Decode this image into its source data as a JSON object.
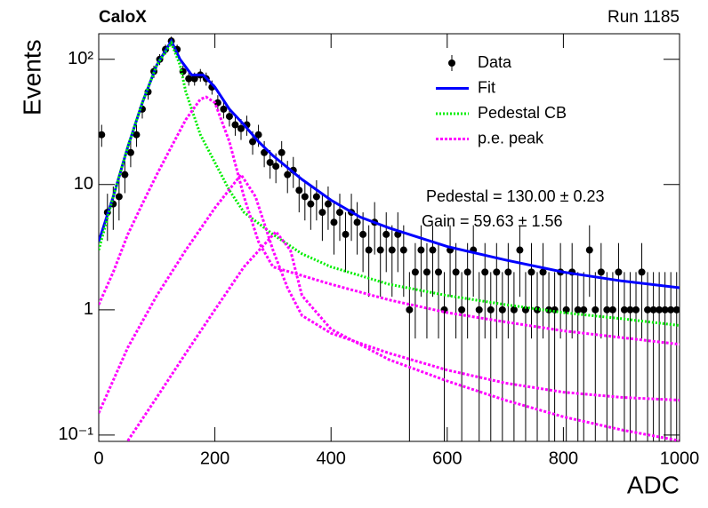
{
  "chart_data": {
    "type": "line",
    "title": "CaloX",
    "subtitle": "Run 1185",
    "x_label": "ADC",
    "y_label": "Events",
    "xlim": [
      0,
      1000
    ],
    "xticks": [
      0,
      200,
      400,
      600,
      800,
      1000
    ],
    "ylim": [
      0.089,
      160
    ],
    "log_y": true,
    "yticks": [
      {
        "value": 0.1,
        "label": "10⁻¹"
      },
      1,
      10,
      {
        "value": 100,
        "label": "10²"
      }
    ],
    "legend": "upper right",
    "annotations": [
      "Pedestal = 130.00 ± 0.23",
      "Gain = 59.63 ± 1.56"
    ],
    "series": [
      {
        "name": "Data",
        "color": "#000000",
        "x": [
          5,
          15,
          25,
          35,
          45,
          55,
          65,
          75,
          85,
          95,
          105,
          115,
          125,
          135,
          145,
          155,
          165,
          175,
          185,
          195,
          205,
          215,
          225,
          235,
          245,
          255,
          265,
          275,
          285,
          295,
          305,
          315,
          325,
          335,
          345,
          355,
          365,
          375,
          385,
          395,
          405,
          415,
          425,
          435,
          445,
          455,
          465,
          475,
          485,
          495,
          505,
          515,
          525,
          535,
          545,
          555,
          565,
          575,
          585,
          595,
          605,
          615,
          625,
          635,
          645,
          655,
          665,
          675,
          685,
          695,
          705,
          715,
          725,
          735,
          745,
          755,
          765,
          775,
          785,
          795,
          805,
          815,
          825,
          835,
          845,
          855,
          865,
          875,
          885,
          895,
          905,
          915,
          925,
          935,
          945,
          955,
          965,
          975,
          985,
          995
        ],
        "values": [
          25,
          6,
          7,
          8,
          12,
          18,
          25,
          40,
          55,
          80,
          100,
          120,
          140,
          120,
          80,
          70,
          70,
          75,
          70,
          60,
          45,
          40,
          35,
          30,
          28,
          30,
          22,
          25,
          18,
          15,
          14,
          18,
          12,
          13,
          9,
          8,
          7,
          8,
          6,
          7,
          5,
          6,
          4,
          6,
          5,
          4,
          3,
          5,
          3,
          4,
          3,
          4,
          3,
          1,
          2,
          3,
          2,
          3,
          2,
          1,
          3,
          2,
          1,
          2,
          3,
          1,
          2,
          1,
          2,
          1,
          2,
          1,
          3,
          1,
          2,
          1,
          2,
          1,
          1,
          2,
          1,
          2,
          1,
          1,
          3,
          1,
          2,
          1,
          1,
          2,
          1,
          1,
          1,
          2,
          1,
          1,
          1,
          1,
          1,
          1
        ],
        "errors": [
          5,
          2.45,
          2.65,
          2.83,
          3.46,
          4.24,
          5,
          6.32,
          7.42,
          8.94,
          10,
          10.95,
          11.83,
          10.95,
          8.94,
          8.37,
          8.37,
          8.66,
          8.37,
          7.75,
          6.71,
          6.32,
          5.92,
          5.48,
          5.29,
          5.48,
          4.69,
          5,
          4.24,
          3.87,
          3.74,
          4.24,
          3.46,
          3.61,
          3,
          2.83,
          2.65,
          2.83,
          2.45,
          2.65,
          2.24,
          2.45,
          2,
          2.45,
          2.24,
          2,
          1.73,
          2.24,
          1.73,
          2,
          1.73,
          2,
          1.73,
          1,
          1.41,
          1.73,
          1.41,
          1.73,
          1.41,
          1,
          1.73,
          1.41,
          1,
          1.41,
          1.73,
          1,
          1.41,
          1,
          1.41,
          1,
          1.41,
          1,
          1.73,
          1,
          1.41,
          1,
          1.41,
          1,
          1,
          1.41,
          1,
          1.41,
          1,
          1,
          1.73,
          1,
          1.41,
          1,
          1,
          1.41,
          1,
          1,
          1,
          1.41,
          1,
          1,
          1,
          1,
          1,
          1
        ]
      },
      {
        "name": "Fit",
        "color": "#0000ff",
        "x": [
          0,
          25,
          50,
          75,
          100,
          125,
          140,
          160,
          180,
          200,
          225,
          250,
          275,
          300,
          350,
          400,
          450,
          500,
          600,
          700,
          800,
          900,
          1000
        ],
        "values": [
          3.5,
          8,
          20,
          45,
          90,
          140,
          100,
          75,
          75,
          60,
          40,
          30,
          22,
          17,
          11,
          7.5,
          5.5,
          4.5,
          3.2,
          2.5,
          2,
          1.7,
          1.5
        ]
      },
      {
        "name": "Pedestal CB",
        "color": "#00ee00",
        "dash": "2 2",
        "x": [
          0,
          25,
          50,
          75,
          100,
          125,
          140,
          150,
          175,
          200,
          225,
          250,
          300,
          350,
          400,
          500,
          600,
          700,
          800,
          900,
          1000
        ],
        "values": [
          3,
          8,
          20,
          45,
          90,
          135,
          90,
          55,
          25,
          15,
          9,
          6,
          4,
          2.8,
          2.2,
          1.6,
          1.3,
          1.1,
          0.95,
          0.85,
          0.75
        ]
      },
      {
        "name": "p.e. peak",
        "color": "#ff00ff",
        "dash": "3 2",
        "curves": [
          {
            "x": [
              0,
              25,
              50,
              75,
              100,
              125,
              150,
              175,
              185,
              200,
              225,
              250,
              275,
              300,
              400,
              500,
              600,
              700,
              800,
              900,
              1000
            ],
            "values": [
              1.1,
              2,
              4,
              7,
              12,
              20,
              33,
              48,
              50,
              45,
              22,
              8,
              3.5,
              2.2,
              1.6,
              1.2,
              0.95,
              0.8,
              0.68,
              0.6,
              0.53
            ]
          },
          {
            "x": [
              0,
              50,
              100,
              150,
              200,
              245,
              270,
              300,
              325,
              350,
              400,
              500,
              600,
              700,
              800,
              900,
              1000
            ],
            "values": [
              0.15,
              0.5,
              1.3,
              3,
              6.5,
              12,
              8,
              3,
              1.5,
              0.9,
              0.65,
              0.45,
              0.33,
              0.26,
              0.22,
              0.2,
              0.19
            ]
          },
          {
            "x": [
              50,
              100,
              150,
              200,
              250,
              305,
              330,
              350,
              400,
              500,
              600,
              700,
              800,
              900,
              1000
            ],
            "values": [
              0.09,
              0.2,
              0.45,
              1,
              2.2,
              4.2,
              3,
              1.3,
              0.7,
              0.4,
              0.27,
              0.19,
              0.14,
              0.11,
              0.09
            ]
          }
        ]
      }
    ]
  }
}
